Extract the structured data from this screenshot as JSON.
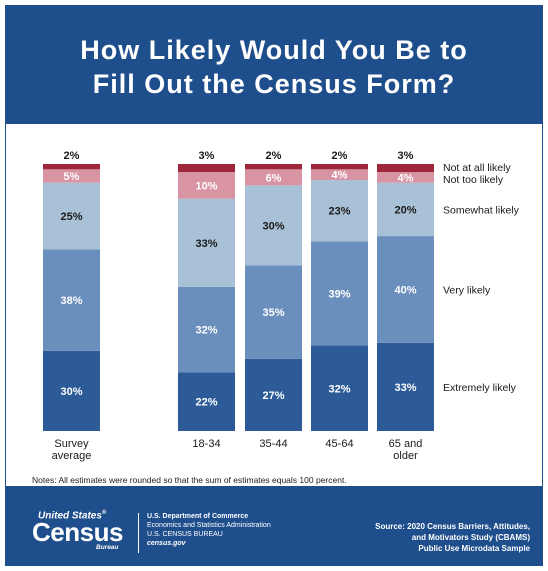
{
  "title_line1": "How Likely Would You Be to",
  "title_line2": "Fill Out the Census Form?",
  "chart_data": {
    "type": "bar",
    "stacked": true,
    "normalized": true,
    "categories": [
      "Survey average",
      "18-34",
      "35-44",
      "45-64",
      "65 and older"
    ],
    "category_lines": [
      [
        "Survey",
        "average"
      ],
      [
        "18-34"
      ],
      [
        "35-44"
      ],
      [
        "45-64"
      ],
      [
        "65 and",
        "older"
      ]
    ],
    "series": [
      {
        "name": "Extremely likely",
        "values": [
          30,
          22,
          27,
          32,
          33
        ],
        "color": "#2c5b97",
        "label_color": "#ffffff"
      },
      {
        "name": "Very likely",
        "values": [
          38,
          32,
          35,
          39,
          40
        ],
        "color": "#6b8fbd",
        "label_color": "#ffffff"
      },
      {
        "name": "Somewhat likely",
        "values": [
          25,
          33,
          30,
          23,
          20
        ],
        "color": "#a9c1d6",
        "label_color": "#1a1a1a"
      },
      {
        "name": "Not too likely",
        "values": [
          5,
          10,
          6,
          4,
          4
        ],
        "color": "#d994a3",
        "label_color": "#ffffff"
      },
      {
        "name": "Not at all likely",
        "values": [
          2,
          3,
          2,
          2,
          3
        ],
        "color": "#a0263b",
        "label_color": "#1a1a1a"
      }
    ],
    "value_suffix": "%",
    "legend_position": "right"
  },
  "notes": "Notes: All estimates were rounded so that the sum of estimates equals 100 percent.",
  "footer": {
    "logo_top": "United States",
    "logo_reg": "®",
    "logo_main": "Census",
    "logo_bureau": "Bureau",
    "dept_line1": "U.S. Department of Commerce",
    "dept_line2": "Economics and Statistics Administration",
    "dept_line3": "U.S. CENSUS BUREAU",
    "dept_line4": "census.gov",
    "source_line1": "Source: 2020 Census Barriers, Attitudes,",
    "source_line2": "and Motivators Study (CBAMS)",
    "source_line3": "Public Use Microdata Sample"
  }
}
